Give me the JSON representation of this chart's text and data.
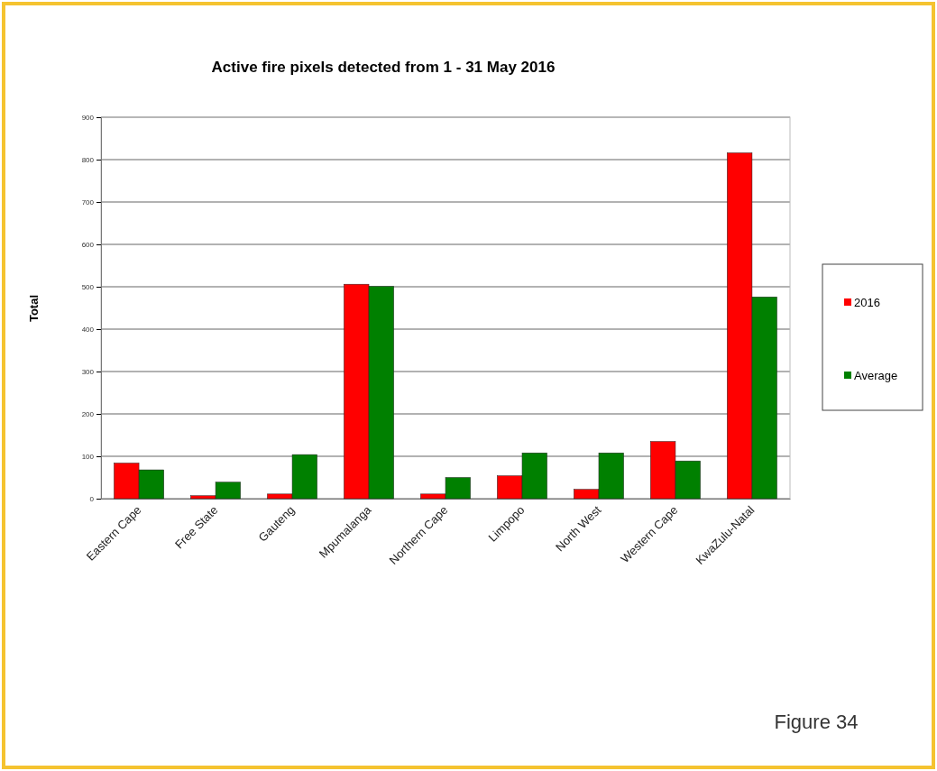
{
  "chart_data": {
    "type": "bar",
    "title": "Active fire pixels detected from 1 - 31 May  2016",
    "ylabel": "Total",
    "categories": [
      "Eastern Cape",
      "Free State",
      "Gauteng",
      "Mpumalanga",
      "Northern Cape",
      "Limpopo",
      "North West",
      "Western Cape",
      "KwaZulu-Natal"
    ],
    "series": [
      {
        "name": "2016",
        "color": "#ff0000",
        "values": [
          84,
          7,
          11,
          506,
          11,
          54,
          22,
          135,
          816
        ]
      },
      {
        "name": "Average",
        "color": "#008000",
        "values": [
          68,
          39,
          104,
          501,
          50,
          108,
          108,
          89,
          476
        ]
      }
    ],
    "ylim": [
      0,
      900
    ],
    "yticks": [
      0,
      100,
      200,
      300,
      400,
      500,
      600,
      700,
      800,
      900
    ],
    "grid": "y",
    "legend": "right",
    "annotations": [
      "Figure 34"
    ]
  }
}
